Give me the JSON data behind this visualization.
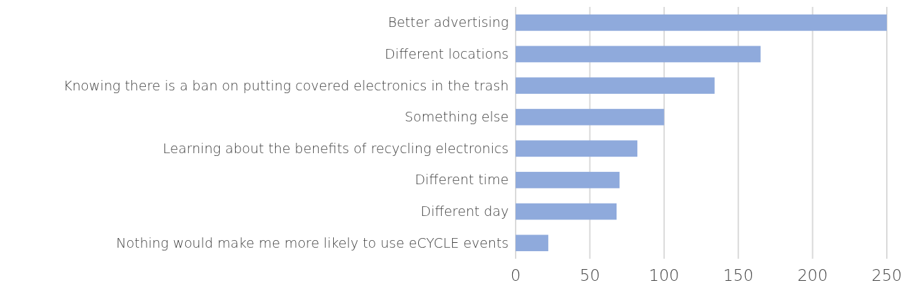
{
  "chart_data": {
    "type": "bar",
    "orientation": "horizontal",
    "categories": [
      "Better advertising",
      "Different locations",
      "Knowing there is a ban on putting covered electronics in the trash",
      "Something else",
      "Learning about the benefits of recycling electronics",
      "Different time",
      "Different day",
      "Nothing would make me more likely to use eCYCLE events"
    ],
    "values": [
      250,
      165,
      134,
      100,
      82,
      70,
      68,
      22
    ],
    "color": "#8faadc",
    "xlim": [
      0,
      250
    ],
    "xticks": [
      0,
      50,
      100,
      150,
      200,
      250
    ],
    "grid": "x"
  }
}
